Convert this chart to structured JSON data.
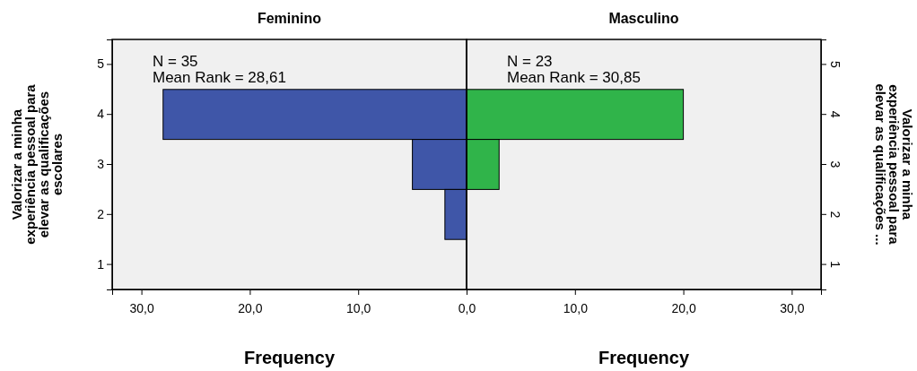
{
  "chart_data": [
    {
      "type": "bar",
      "orientation": "horizontal",
      "title": "Feminino",
      "xlabel": "Frequency",
      "ylabel": "Valorizar a minha experiência pessoal para elevar as qualificações escolares",
      "categories": [
        "5",
        "4",
        "3",
        "2",
        "1"
      ],
      "values": [
        0,
        28,
        5,
        2,
        0
      ],
      "color": "#3f56a8",
      "xlim": [
        32.7,
        0
      ],
      "xticks": [
        {
          "value": 30,
          "label": "30,0"
        },
        {
          "value": 20,
          "label": "20,0"
        },
        {
          "value": 10,
          "label": "10,0"
        },
        {
          "value": 0,
          "label": null
        }
      ],
      "annotations": [
        "N = 35",
        "Mean Rank = 28,61"
      ],
      "grid": false
    },
    {
      "type": "bar",
      "orientation": "horizontal",
      "title": "Masculino",
      "xlabel": "Frequency",
      "ylabel": "Valorizar a minha experiência pessoal para elevar as qualificações ...",
      "categories": [
        "5",
        "4",
        "3",
        "2",
        "1"
      ],
      "values": [
        0,
        20,
        3,
        0,
        0
      ],
      "color": "#30b44a",
      "xlim": [
        0,
        32.7
      ],
      "xticks": [
        {
          "value": 0,
          "label": "0,0"
        },
        {
          "value": 10,
          "label": "10,0"
        },
        {
          "value": 20,
          "label": "20,0"
        },
        {
          "value": 30,
          "label": "30,0"
        }
      ],
      "annotations": [
        "N = 23",
        "Mean Rank = 30,85"
      ],
      "grid": false
    }
  ]
}
